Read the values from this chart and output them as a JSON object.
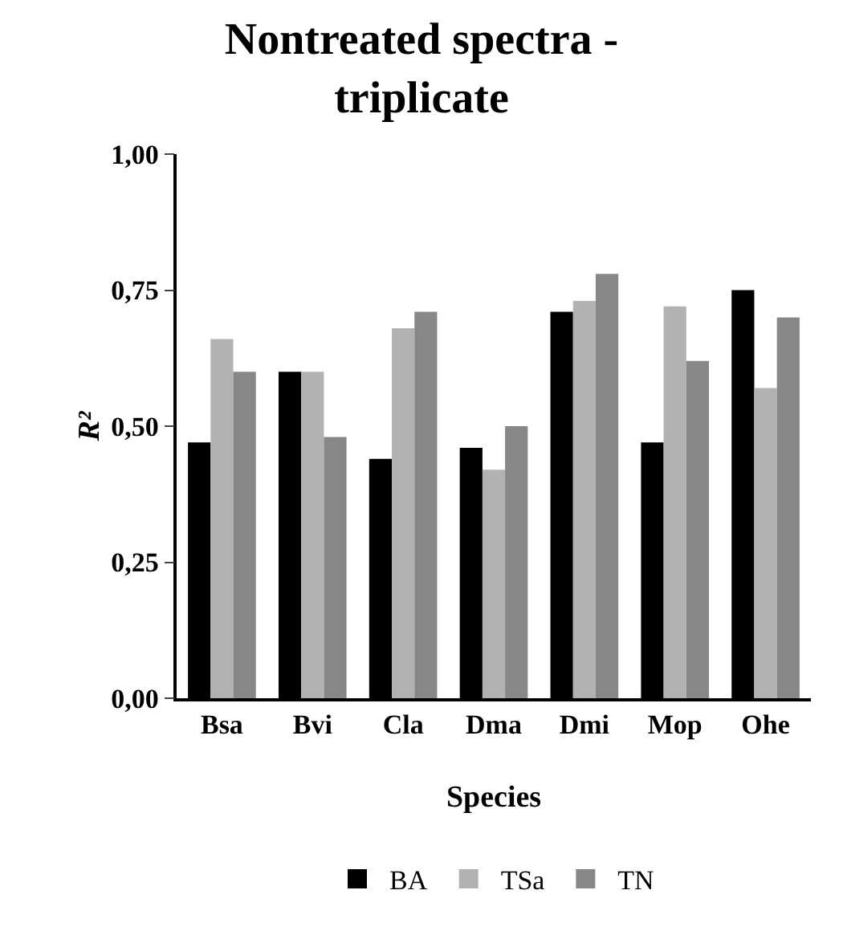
{
  "chart_data": {
    "type": "bar",
    "title": "Nontreated spectra -\ntriplicate",
    "xlabel": "Species",
    "ylabel": "R²",
    "categories": [
      "Bsa",
      "Bvi",
      "Cla",
      "Dma",
      "Dmi",
      "Mop",
      "Ohe"
    ],
    "series": [
      {
        "name": "BA",
        "color": "#000000",
        "values": [
          0.47,
          0.6,
          0.44,
          0.46,
          0.71,
          0.47,
          0.75
        ]
      },
      {
        "name": "TSa",
        "color": "#b2b2b2",
        "values": [
          0.66,
          0.6,
          0.68,
          0.42,
          0.73,
          0.72,
          0.57
        ]
      },
      {
        "name": "TN",
        "color": "#878787",
        "values": [
          0.6,
          0.48,
          0.71,
          0.5,
          0.78,
          0.62,
          0.7
        ]
      }
    ],
    "ylim": [
      0,
      1
    ],
    "yticks": [
      {
        "value": 0,
        "label": "0,00"
      },
      {
        "value": 0.25,
        "label": "0,25"
      },
      {
        "value": 0.5,
        "label": "0,50"
      },
      {
        "value": 0.75,
        "label": "0,75"
      },
      {
        "value": 1,
        "label": "1,00"
      }
    ],
    "grid": false,
    "legend": "bottom"
  }
}
